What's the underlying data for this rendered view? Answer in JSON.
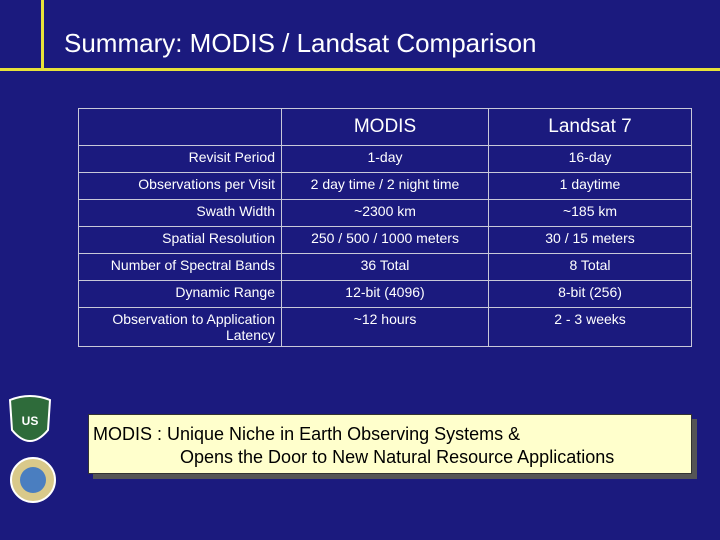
{
  "header": {
    "title": "Summary: MODIS / Landsat Comparison"
  },
  "table": {
    "columns": [
      "",
      "MODIS",
      "Landsat 7"
    ],
    "rows": [
      [
        "Revisit Period",
        "1-day",
        "16-day"
      ],
      [
        "Observations per Visit",
        "2 day time / 2 night time",
        "1 daytime"
      ],
      [
        "Swath Width",
        "~2300 km",
        "~185 km"
      ],
      [
        "Spatial Resolution",
        "250 / 500 / 1000 meters",
        "30 / 15 meters"
      ],
      [
        "Number of Spectral Bands",
        "36 Total",
        "8 Total"
      ],
      [
        "Dynamic Range",
        "12-bit (4096)",
        "8-bit (256)"
      ],
      [
        "Observation to Application Latency",
        "~12 hours",
        "2 - 3 weeks"
      ]
    ]
  },
  "callout": {
    "lines": [
      "MODIS :  Unique Niche in Earth Observing Systems &",
      "Opens the Door to New Natural Resource Applications"
    ]
  }
}
